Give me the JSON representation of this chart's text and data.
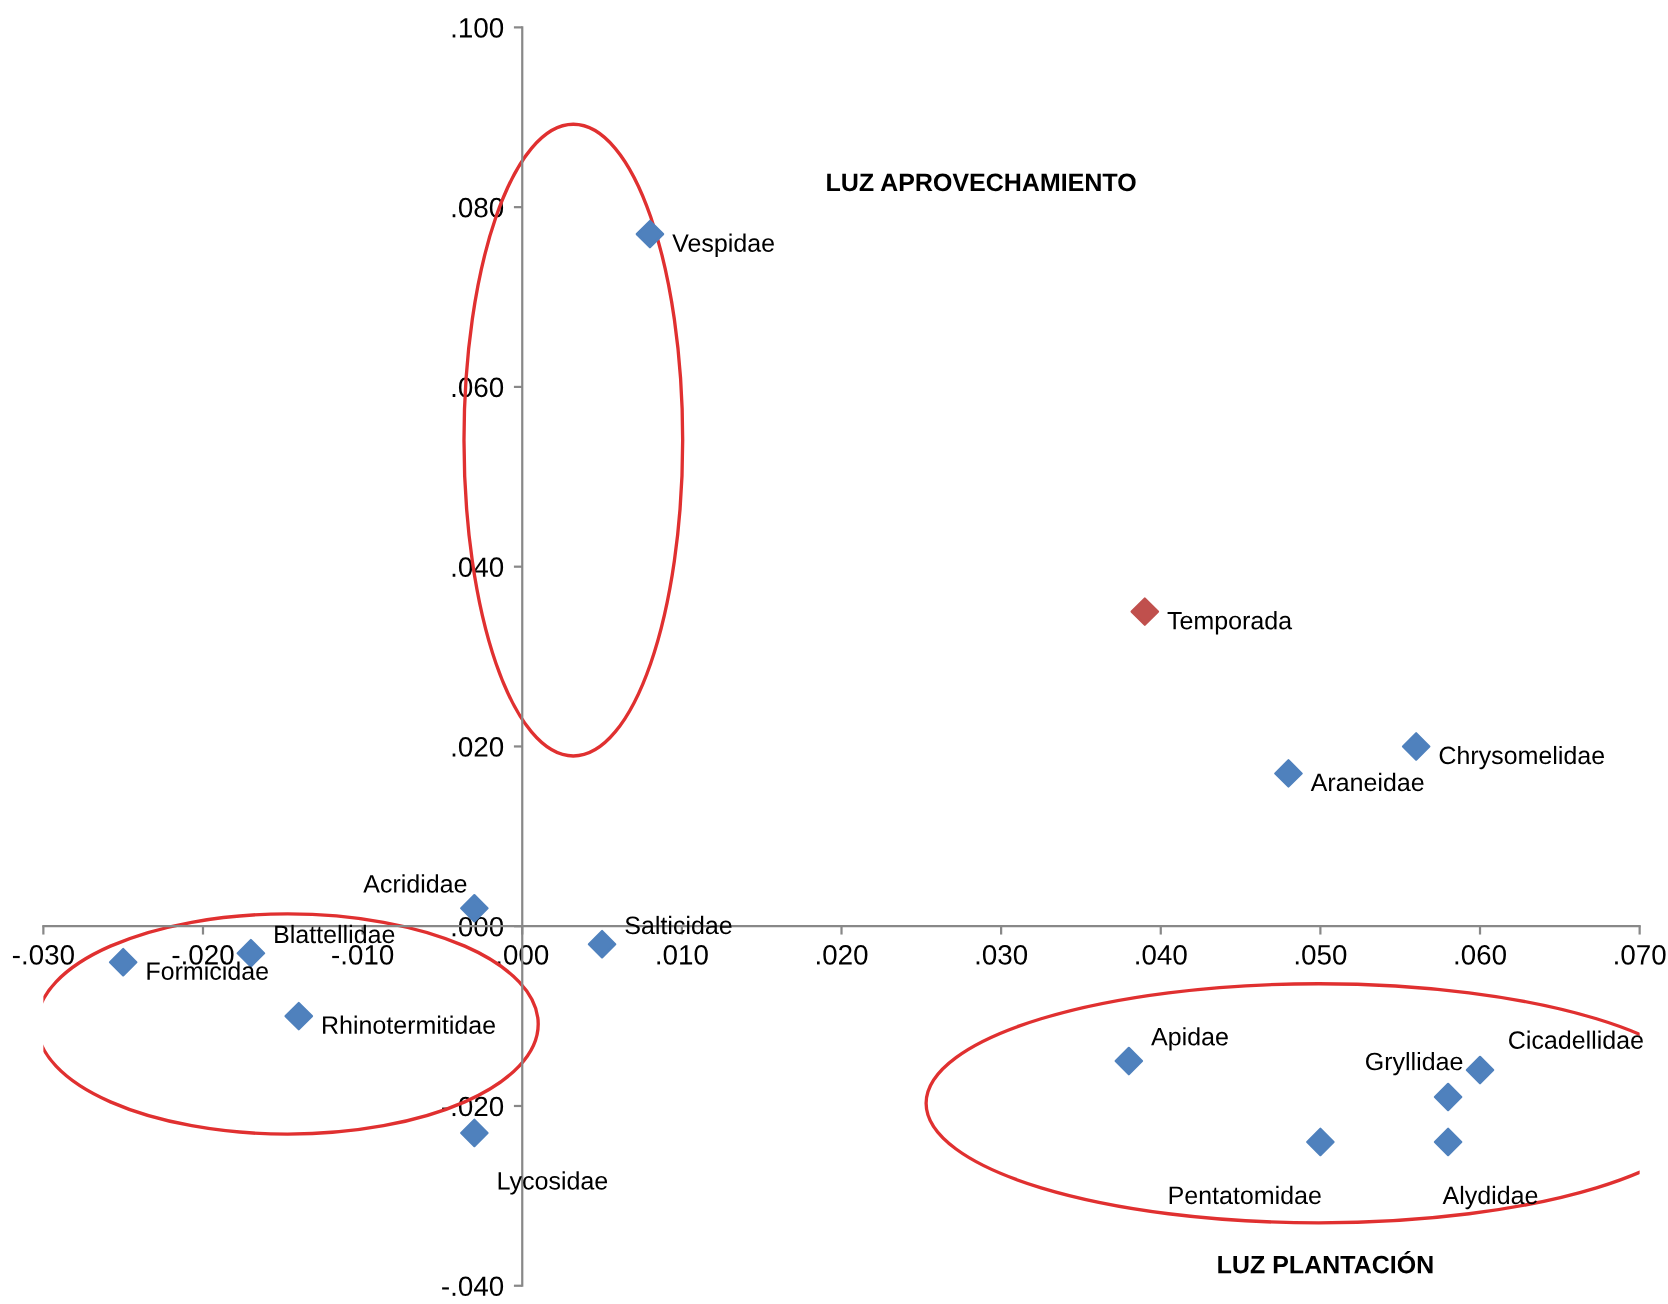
{
  "chart_data": {
    "type": "scatter",
    "x": [
      0.008,
      0.039,
      0.056,
      0.048,
      -0.003,
      0.005,
      -0.017,
      -0.025,
      -0.014,
      -0.003,
      0.038,
      0.06,
      0.058,
      0.05,
      0.058
    ],
    "values": [
      0.077,
      0.035,
      0.02,
      0.017,
      0.002,
      -0.002,
      -0.003,
      -0.004,
      -0.01,
      -0.023,
      -0.015,
      -0.016,
      -0.019,
      -0.024,
      -0.024
    ],
    "value_labels": [
      "Vespidae",
      "Temporada",
      "Chrysomelidae",
      "Araneidae",
      "Acrididae",
      "Salticidae",
      "Blattellidae",
      "Formicidae",
      "Rhinotermitidae",
      "Lycosidae",
      "Apidae",
      "Cicadellidae",
      "Gryllidae",
      "Pentatomidae",
      "Alydidae"
    ],
    "colors": [
      "#4f81bd",
      "#c0504d",
      "#4f81bd",
      "#4f81bd",
      "#4f81bd",
      "#4f81bd",
      "#4f81bd",
      "#4f81bd",
      "#4f81bd",
      "#4f81bd",
      "#4f81bd",
      "#4f81bd",
      "#4f81bd",
      "#4f81bd",
      "#4f81bd"
    ],
    "marker": "diamond",
    "grid": false,
    "legend": false,
    "xlim": [
      -0.03,
      0.07
    ],
    "xticks": [
      {
        "value": -0.03,
        "label": "-.030"
      },
      {
        "value": -0.02,
        "label": "-.020"
      },
      {
        "value": -0.01,
        "label": "-.010"
      },
      {
        "value": 0,
        "label": ".000"
      },
      {
        "value": 0.01,
        "label": ".010"
      },
      {
        "value": 0.02,
        "label": ".020"
      },
      {
        "value": 0.03,
        "label": ".030"
      },
      {
        "value": 0.04,
        "label": ".040"
      },
      {
        "value": 0.05,
        "label": ".050"
      },
      {
        "value": 0.06,
        "label": ".060"
      },
      {
        "value": 0.07,
        "label": ".070"
      }
    ],
    "ylim": [
      -0.04,
      0.1
    ],
    "yticks": [
      {
        "value": -0.04,
        "label": "-.040"
      },
      {
        "value": -0.02,
        "label": "-.020"
      },
      {
        "value": 0,
        "label": ".000"
      },
      {
        "value": 0.02,
        "label": ".020"
      },
      {
        "value": 0.04,
        "label": ".040"
      },
      {
        "value": 0.06,
        "label": ".060"
      },
      {
        "value": 0.08,
        "label": ".080"
      },
      {
        "value": 0.1,
        "label": ".100"
      }
    ],
    "annotations": [
      "LUZ APROVECHAMIENTO",
      "LUZ PLANTACIÓN"
    ]
  }
}
